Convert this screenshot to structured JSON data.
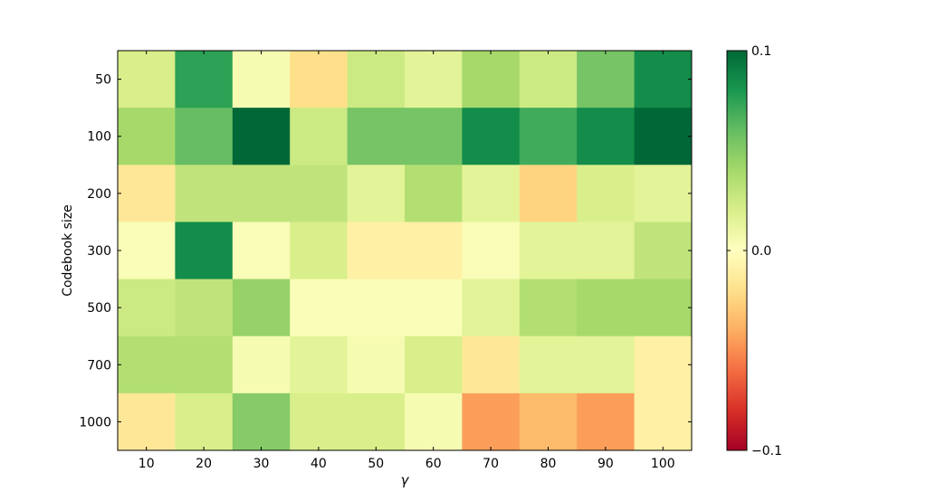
{
  "chart_data": {
    "type": "heatmap",
    "xlabel": "γ",
    "ylabel": "Codebook size",
    "x_categories": [
      "10",
      "20",
      "30",
      "40",
      "50",
      "60",
      "70",
      "80",
      "90",
      "100"
    ],
    "y_categories": [
      "50",
      "100",
      "200",
      "300",
      "500",
      "700",
      "1000"
    ],
    "values": [
      [
        0.02,
        0.075,
        0.005,
        -0.02,
        0.025,
        0.015,
        0.04,
        0.025,
        0.055,
        0.085
      ],
      [
        0.04,
        0.06,
        0.1,
        0.025,
        0.055,
        0.055,
        0.085,
        0.07,
        0.085,
        0.1
      ],
      [
        -0.015,
        0.03,
        0.03,
        0.03,
        0.015,
        0.035,
        0.015,
        -0.025,
        0.02,
        0.015
      ],
      [
        0.003,
        0.085,
        0.003,
        0.02,
        -0.01,
        -0.01,
        0.003,
        0.015,
        0.015,
        0.03
      ],
      [
        0.025,
        0.03,
        0.045,
        0.003,
        0.003,
        0.003,
        0.015,
        0.035,
        0.04,
        0.04
      ],
      [
        0.035,
        0.035,
        0.005,
        0.015,
        0.005,
        0.02,
        -0.015,
        0.015,
        0.015,
        -0.01
      ],
      [
        -0.015,
        0.02,
        0.05,
        0.02,
        0.02,
        0.005,
        -0.045,
        -0.035,
        -0.045,
        -0.01
      ]
    ],
    "colorbar": {
      "colormap": "RdYlGn",
      "range": [
        -0.1,
        0.1
      ],
      "tick_values": [
        0.1,
        0.0,
        -0.1
      ],
      "tick_labels": [
        "0.1",
        "0.0",
        "−0.1"
      ]
    },
    "grid": false
  }
}
